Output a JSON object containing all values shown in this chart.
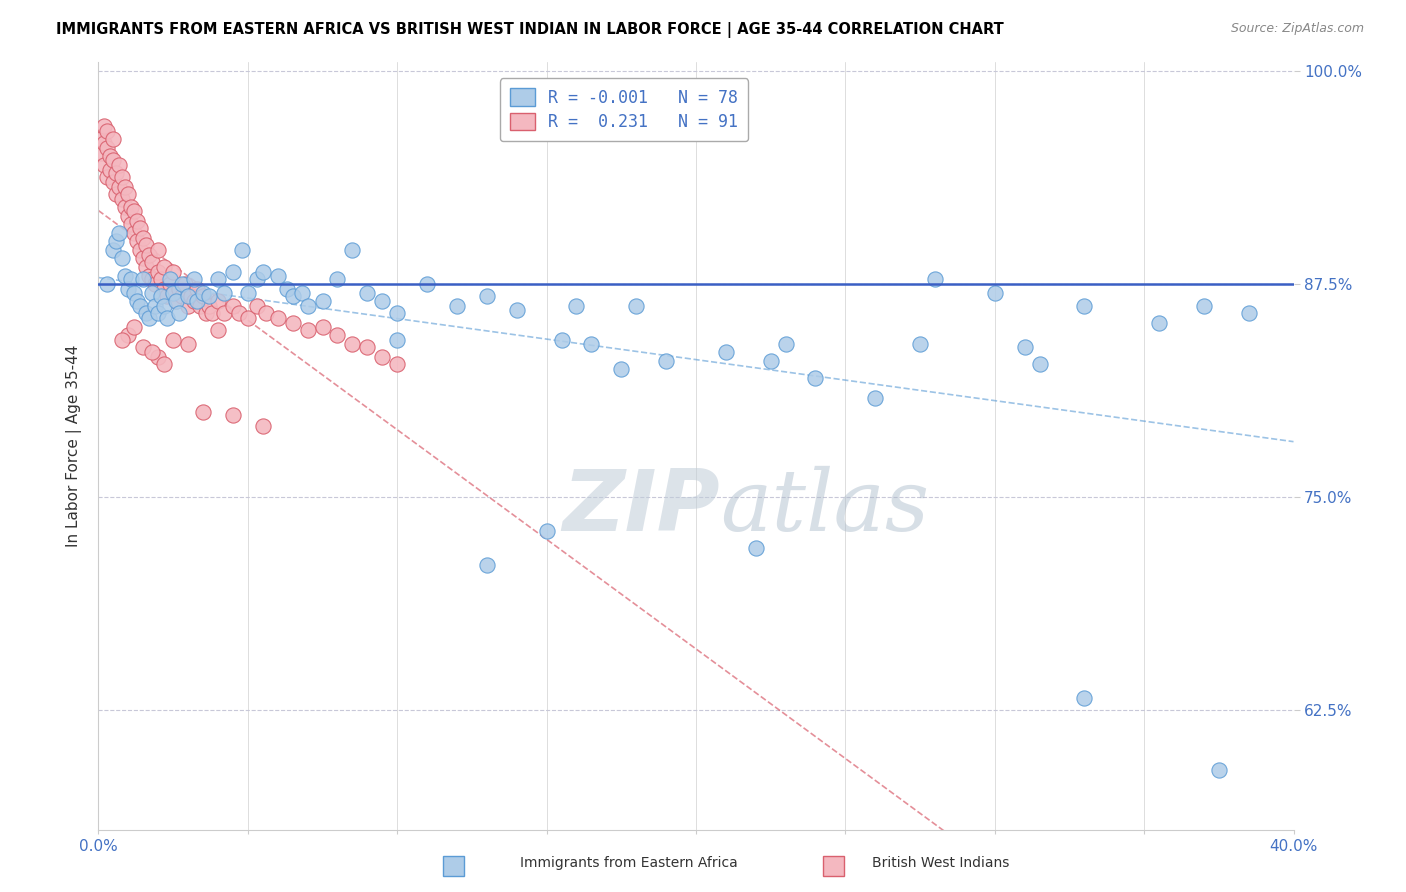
{
  "title": "IMMIGRANTS FROM EASTERN AFRICA VS BRITISH WEST INDIAN IN LABOR FORCE | AGE 35-44 CORRELATION CHART",
  "source": "Source: ZipAtlas.com",
  "ylabel": "In Labor Force | Age 35-44",
  "xlim": [
    0.0,
    0.4
  ],
  "ylim": [
    0.555,
    1.005
  ],
  "hline_y": 0.875,
  "hline_color": "#3a5fc4",
  "r_blue": -0.001,
  "n_blue": 78,
  "r_pink": 0.231,
  "n_pink": 91,
  "blue_color": "#aecce8",
  "pink_color": "#f4b8c0",
  "blue_edge": "#5b9bd5",
  "pink_edge": "#d9606e",
  "watermark_color": "#c8d8e8",
  "grid_color": "#c8c8d8",
  "ytick_vals": [
    0.625,
    0.75,
    0.875,
    1.0
  ],
  "ytick_labels": [
    "62.5%",
    "75.0%",
    "87.5%",
    "100.0%"
  ],
  "xtick_vals": [
    0.0,
    0.05,
    0.1,
    0.15,
    0.2,
    0.25,
    0.3,
    0.35,
    0.4
  ],
  "xtick_labels": [
    "0.0%",
    "",
    "",
    "",
    "",
    "",
    "",
    "",
    "40.0%"
  ],
  "blue_x": [
    0.003,
    0.005,
    0.006,
    0.007,
    0.008,
    0.009,
    0.01,
    0.011,
    0.012,
    0.013,
    0.014,
    0.015,
    0.016,
    0.017,
    0.018,
    0.019,
    0.02,
    0.021,
    0.022,
    0.023,
    0.024,
    0.025,
    0.026,
    0.027,
    0.028,
    0.03,
    0.032,
    0.033,
    0.035,
    0.037,
    0.04,
    0.042,
    0.045,
    0.048,
    0.05,
    0.053,
    0.055,
    0.06,
    0.063,
    0.065,
    0.068,
    0.07,
    0.075,
    0.08,
    0.085,
    0.09,
    0.095,
    0.1,
    0.11,
    0.12,
    0.13,
    0.14,
    0.155,
    0.165,
    0.175,
    0.19,
    0.21,
    0.225,
    0.24,
    0.26,
    0.275,
    0.3,
    0.315,
    0.33,
    0.355,
    0.37,
    0.385,
    0.23,
    0.16,
    0.1,
    0.28,
    0.18,
    0.31,
    0.375,
    0.33,
    0.22,
    0.15,
    0.13
  ],
  "blue_y": [
    0.875,
    0.895,
    0.9,
    0.905,
    0.89,
    0.88,
    0.872,
    0.878,
    0.87,
    0.865,
    0.862,
    0.878,
    0.858,
    0.855,
    0.87,
    0.862,
    0.858,
    0.868,
    0.862,
    0.855,
    0.878,
    0.87,
    0.865,
    0.858,
    0.875,
    0.868,
    0.878,
    0.865,
    0.87,
    0.868,
    0.878,
    0.87,
    0.882,
    0.895,
    0.87,
    0.878,
    0.882,
    0.88,
    0.872,
    0.868,
    0.87,
    0.862,
    0.865,
    0.878,
    0.895,
    0.87,
    0.865,
    0.858,
    0.875,
    0.862,
    0.868,
    0.86,
    0.842,
    0.84,
    0.825,
    0.83,
    0.835,
    0.83,
    0.82,
    0.808,
    0.84,
    0.87,
    0.828,
    0.862,
    0.852,
    0.862,
    0.858,
    0.84,
    0.862,
    0.842,
    0.878,
    0.862,
    0.838,
    0.59,
    0.632,
    0.72,
    0.73,
    0.71
  ],
  "pink_x": [
    0.001,
    0.001,
    0.002,
    0.002,
    0.002,
    0.003,
    0.003,
    0.003,
    0.004,
    0.004,
    0.005,
    0.005,
    0.005,
    0.006,
    0.006,
    0.007,
    0.007,
    0.008,
    0.008,
    0.009,
    0.009,
    0.01,
    0.01,
    0.011,
    0.011,
    0.012,
    0.012,
    0.013,
    0.013,
    0.014,
    0.014,
    0.015,
    0.015,
    0.016,
    0.016,
    0.017,
    0.017,
    0.018,
    0.018,
    0.019,
    0.02,
    0.02,
    0.021,
    0.022,
    0.022,
    0.023,
    0.024,
    0.025,
    0.025,
    0.026,
    0.027,
    0.028,
    0.029,
    0.03,
    0.031,
    0.032,
    0.033,
    0.034,
    0.035,
    0.036,
    0.037,
    0.038,
    0.04,
    0.042,
    0.045,
    0.047,
    0.05,
    0.053,
    0.056,
    0.06,
    0.065,
    0.07,
    0.075,
    0.08,
    0.085,
    0.09,
    0.095,
    0.1,
    0.03,
    0.04,
    0.015,
    0.025,
    0.02,
    0.01,
    0.012,
    0.008,
    0.018,
    0.022,
    0.035,
    0.045,
    0.055
  ],
  "pink_y": [
    0.96,
    0.952,
    0.958,
    0.968,
    0.945,
    0.955,
    0.938,
    0.965,
    0.942,
    0.95,
    0.935,
    0.948,
    0.96,
    0.928,
    0.94,
    0.932,
    0.945,
    0.925,
    0.938,
    0.92,
    0.932,
    0.915,
    0.928,
    0.91,
    0.92,
    0.905,
    0.918,
    0.9,
    0.912,
    0.895,
    0.908,
    0.89,
    0.902,
    0.885,
    0.898,
    0.88,
    0.892,
    0.878,
    0.888,
    0.875,
    0.882,
    0.895,
    0.878,
    0.872,
    0.885,
    0.868,
    0.875,
    0.87,
    0.882,
    0.865,
    0.872,
    0.868,
    0.875,
    0.862,
    0.868,
    0.865,
    0.872,
    0.862,
    0.868,
    0.858,
    0.862,
    0.858,
    0.865,
    0.858,
    0.862,
    0.858,
    0.855,
    0.862,
    0.858,
    0.855,
    0.852,
    0.848,
    0.85,
    0.845,
    0.84,
    0.838,
    0.832,
    0.828,
    0.84,
    0.848,
    0.838,
    0.842,
    0.832,
    0.845,
    0.85,
    0.842,
    0.835,
    0.828,
    0.8,
    0.798,
    0.792
  ],
  "legend_r_blue_text": "R = -0.001   N = 78",
  "legend_r_pink_text": "R =  0.231   N = 91"
}
